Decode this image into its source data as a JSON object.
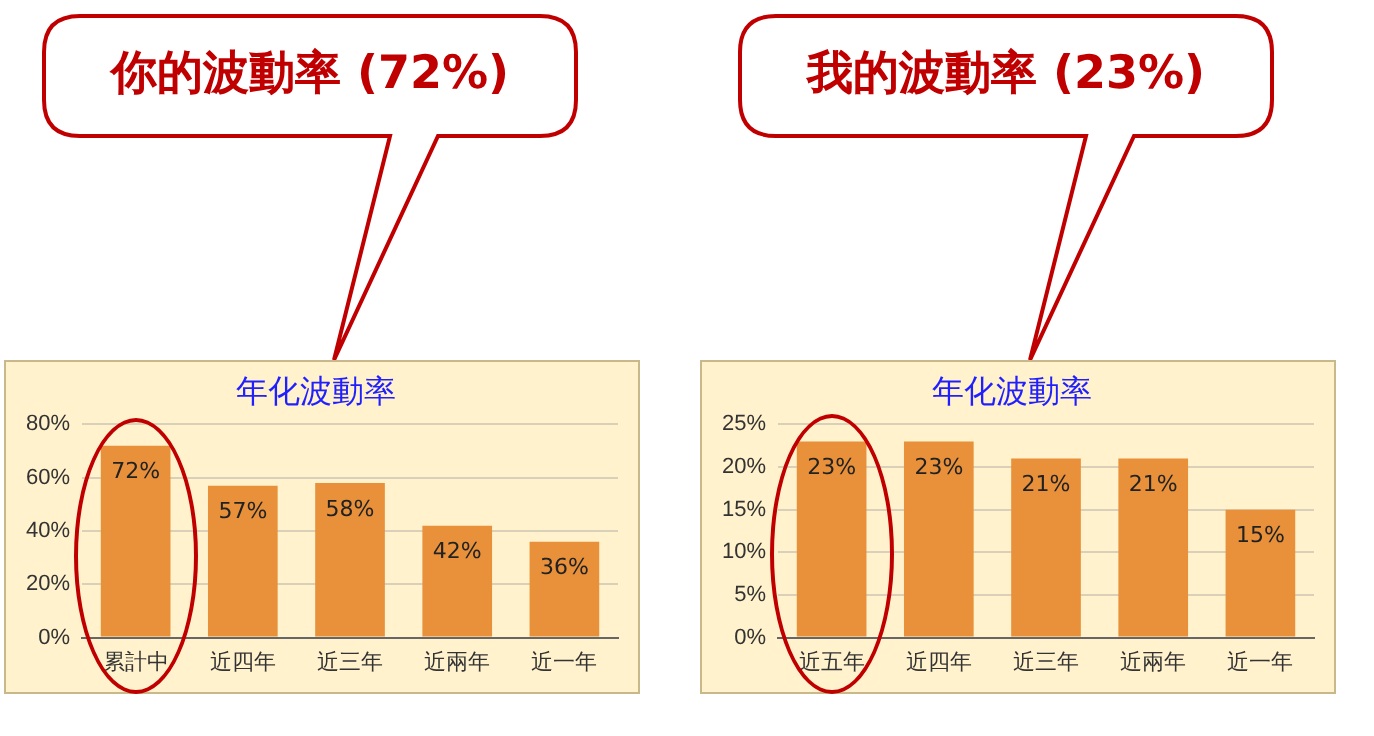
{
  "chart_data": [
    {
      "type": "bar",
      "title": "年化波動率",
      "categories": [
        "累計中",
        "近四年",
        "近三年",
        "近兩年",
        "近一年"
      ],
      "values": [
        72,
        57,
        58,
        42,
        36
      ],
      "value_labels": [
        "72%",
        "57%",
        "58%",
        "42%",
        "36%"
      ],
      "color": "#e8913a",
      "ylim": [
        0,
        80
      ],
      "yticks": [
        {
          "value": 0,
          "label": "0%"
        },
        {
          "value": 20,
          "label": "20%"
        },
        {
          "value": 40,
          "label": "40%"
        },
        {
          "value": 60,
          "label": "60%"
        },
        {
          "value": 80,
          "label": "80%"
        }
      ],
      "grid": "y",
      "legend": false,
      "annotations": [
        "你的波動率 (72%)"
      ]
    },
    {
      "type": "bar",
      "title": "年化波動率",
      "categories": [
        "近五年",
        "近四年",
        "近三年",
        "近兩年",
        "近一年"
      ],
      "values": [
        23,
        23,
        21,
        21,
        15
      ],
      "value_labels": [
        "23%",
        "23%",
        "21%",
        "21%",
        "15%"
      ],
      "color": "#e8913a",
      "ylim": [
        0,
        25
      ],
      "yticks": [
        {
          "value": 0,
          "label": "0%"
        },
        {
          "value": 5,
          "label": "5%"
        },
        {
          "value": 10,
          "label": "10%"
        },
        {
          "value": 15,
          "label": "15%"
        },
        {
          "value": 20,
          "label": "20%"
        },
        {
          "value": 25,
          "label": "25%"
        }
      ],
      "grid": "y",
      "legend": false,
      "annotations": [
        "我的波動率 (23%)"
      ]
    }
  ]
}
